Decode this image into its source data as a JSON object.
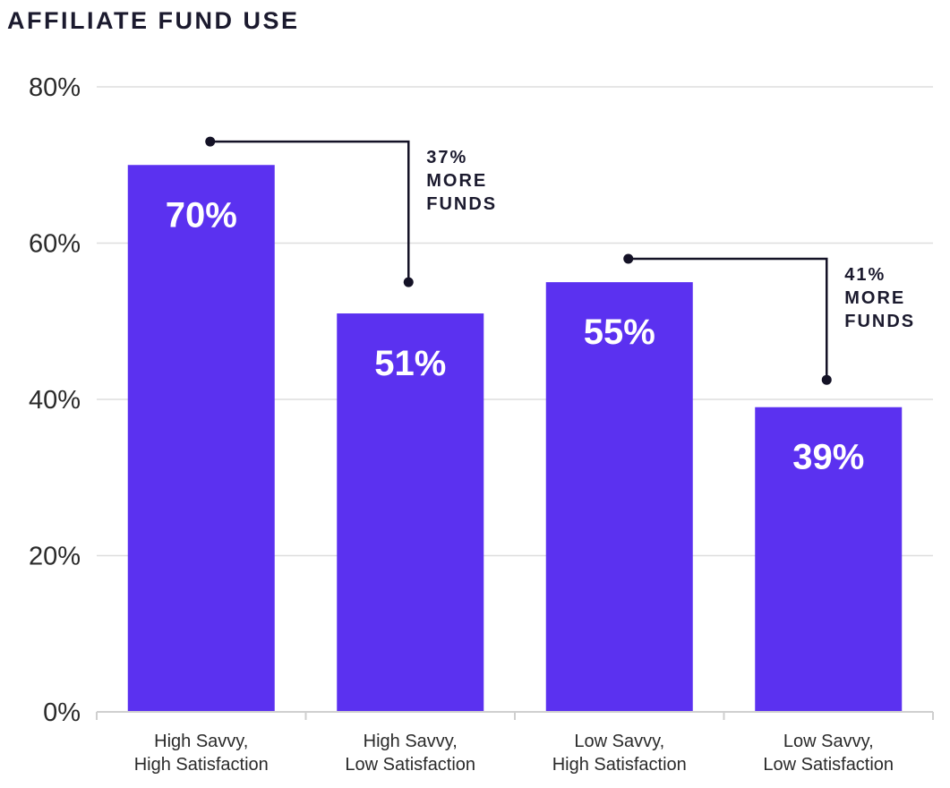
{
  "chart_data": {
    "type": "bar",
    "title": "AFFILIATE FUND USE",
    "xlabel": "",
    "ylabel": "",
    "ylim": [
      0,
      80
    ],
    "yticks": [
      "0%",
      "20%",
      "40%",
      "60%",
      "80%"
    ],
    "ytick_values": [
      0,
      20,
      40,
      60,
      80
    ],
    "grid": true,
    "categories": [
      [
        "High Savvy,",
        "High Satisfaction"
      ],
      [
        "High Savvy,",
        "Low Satisfaction"
      ],
      [
        "Low Savvy,",
        "High Satisfaction"
      ],
      [
        "Low Savvy,",
        "Low Satisfaction"
      ]
    ],
    "values": [
      70,
      51,
      55,
      39
    ],
    "data_labels": [
      "70%",
      "51%",
      "55%",
      "39%"
    ],
    "bar_color": "#5b31f0",
    "annotations": [
      {
        "from_bar": 0,
        "to_bar": 1,
        "from_level": 73,
        "to_level": 55,
        "text": [
          "37%",
          "MORE",
          "FUNDS"
        ]
      },
      {
        "from_bar": 2,
        "to_bar": 3,
        "from_level": 58,
        "to_level": 42.5,
        "text": [
          "41%",
          "MORE",
          "FUNDS"
        ]
      }
    ]
  }
}
